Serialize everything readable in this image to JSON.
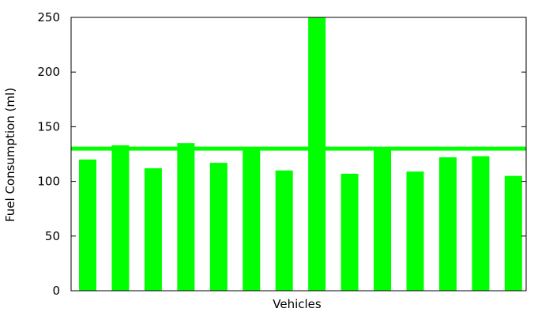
{
  "chart_data": {
    "type": "bar",
    "title": "",
    "xlabel": "Vehicles",
    "ylabel": "Fuel Consumption (ml)",
    "ylim": [
      0,
      250
    ],
    "yticks": [
      0,
      50,
      100,
      150,
      200,
      250
    ],
    "grid": false,
    "legend": "none",
    "bar_color": "#00ff00",
    "reference_line": {
      "y": 130,
      "color": "#00ff00"
    },
    "categories": [
      "",
      "",
      "",
      "",
      "",
      "",
      "",
      "",
      "",
      "",
      "",
      "",
      "",
      ""
    ],
    "values": [
      120,
      133,
      112,
      135,
      117,
      130,
      110,
      250,
      107,
      130,
      109,
      122,
      123,
      105
    ]
  }
}
